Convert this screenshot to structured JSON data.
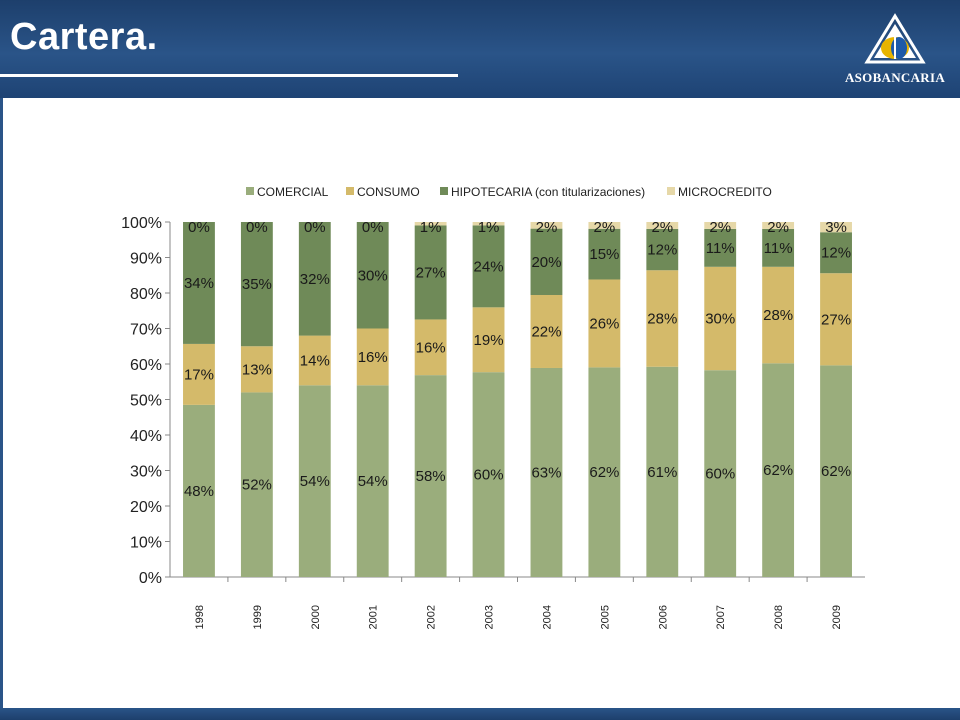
{
  "slide": {
    "title": "Cartera.",
    "logo_text": "ASOBANCARIA",
    "colors": {
      "header": "#2a5488",
      "logo_yellow": "#e7b400",
      "logo_blue": "#1e5aa8"
    }
  },
  "chart_data": {
    "type": "bar",
    "stacked": "percent",
    "categories": [
      "1998",
      "1999",
      "2000",
      "2001",
      "2002",
      "2003",
      "2004",
      "2005",
      "2006",
      "2007",
      "2008",
      "2009"
    ],
    "series": [
      {
        "name": "COMERCIAL",
        "color": "#9aad7c",
        "values": [
          48,
          52,
          54,
          54,
          58,
          60,
          63,
          62,
          61,
          60,
          62,
          62
        ],
        "labels": [
          "48%",
          "52%",
          "54%",
          "54%",
          "58%",
          "60%",
          "63%",
          "62%",
          "61%",
          "60%",
          "62%",
          "62%"
        ]
      },
      {
        "name": "CONSUMO",
        "color": "#d4ba6a",
        "values": [
          17,
          13,
          14,
          16,
          16,
          19,
          22,
          26,
          28,
          30,
          28,
          27
        ],
        "labels": [
          "17%",
          "13%",
          "14%",
          "16%",
          "16%",
          "19%",
          "22%",
          "26%",
          "28%",
          "30%",
          "28%",
          "27%"
        ]
      },
      {
        "name": "HIPOTECARIA (con titularizaciones)",
        "color": "#6f8a58",
        "values": [
          34,
          35,
          32,
          30,
          27,
          24,
          20,
          15,
          12,
          11,
          11,
          12
        ],
        "labels": [
          "34%",
          "35%",
          "32%",
          "30%",
          "27%",
          "24%",
          "20%",
          "15%",
          "12%",
          "11%",
          "11%",
          "12%"
        ]
      },
      {
        "name": "MICROCREDITO",
        "color": "#e6d8a8",
        "values": [
          0,
          0,
          0,
          0,
          1,
          1,
          2,
          2,
          2,
          2,
          2,
          3
        ],
        "labels": [
          "0%",
          "0%",
          "0%",
          "0%",
          "1%",
          "1%",
          "2%",
          "2%",
          "2%",
          "2%",
          "2%",
          "3%"
        ]
      }
    ],
    "y_ticks": [
      "0%",
      "10%",
      "20%",
      "30%",
      "40%",
      "50%",
      "60%",
      "70%",
      "80%",
      "90%",
      "100%"
    ],
    "ylim": [
      0,
      100
    ],
    "legend_position": "top",
    "grid": false
  }
}
